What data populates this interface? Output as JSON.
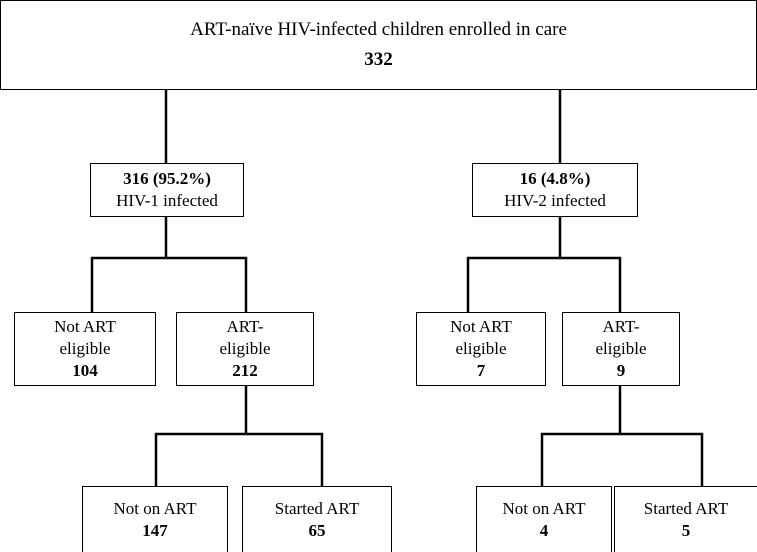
{
  "root": {
    "label": "ART-naïve HIV-infected children enrolled in care",
    "count": 332
  },
  "groups": [
    {
      "count": "316 (95.2%)",
      "label": "HIV-1 infected",
      "eligibility": [
        {
          "label": "Not ART eligible",
          "count": 104
        },
        {
          "label": "ART-eligible",
          "count": 212
        }
      ],
      "treatment": [
        {
          "label": "Not on ART",
          "count": 147
        },
        {
          "label": "Started ART",
          "count": 65
        }
      ]
    },
    {
      "count": "16 (4.8%)",
      "label": "HIV-2 infected",
      "eligibility": [
        {
          "label": "Not ART eligible",
          "count": 7
        },
        {
          "label": "ART-eligible",
          "count": 9
        }
      ],
      "treatment": [
        {
          "label": "Not on ART",
          "count": 4
        },
        {
          "label": "Started ART",
          "count": 5
        }
      ]
    }
  ]
}
